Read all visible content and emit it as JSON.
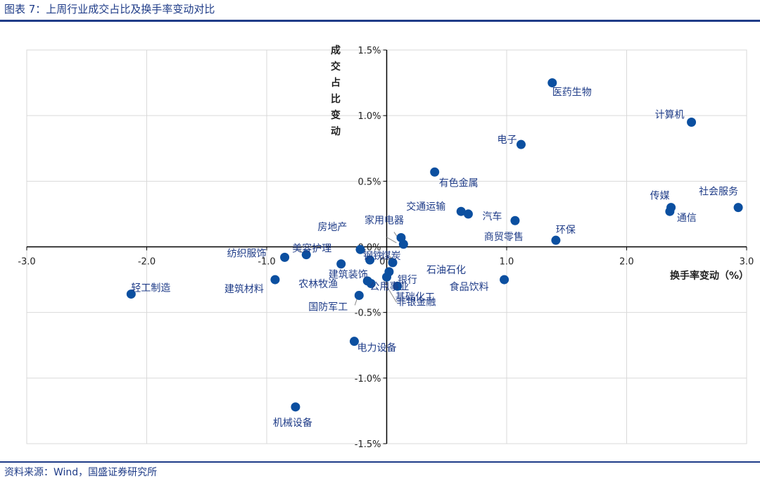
{
  "header": {
    "title": "图表 7：上周行业成交占比及换手率变动对比"
  },
  "footer": {
    "source": "资料来源：Wind，国盛证券研究所"
  },
  "chart_data": {
    "type": "scatter",
    "xlabel": "换手率变动（%）",
    "ylabel": "成交占比变动",
    "xlim": [
      -3.0,
      3.0
    ],
    "ylim": [
      -1.5,
      1.5
    ],
    "x_ticks": [
      "-3.0",
      "-2.0",
      "-1.0",
      "0.0",
      "1.0",
      "2.0",
      "3.0"
    ],
    "y_ticks": [
      "-1.5%",
      "-1.0%",
      "-0.5%",
      "0.0%",
      "0.5%",
      "1.0%",
      "1.5%"
    ],
    "grid": true,
    "colors": {
      "point": "#0b4fa0",
      "label": "#1f3c88",
      "rule": "#1f3c88"
    },
    "points": [
      {
        "name": "医药生物",
        "x": 1.38,
        "y": 1.25
      },
      {
        "name": "计算机",
        "x": 2.54,
        "y": 0.95
      },
      {
        "name": "电子",
        "x": 1.12,
        "y": 0.78
      },
      {
        "name": "有色金属",
        "x": 0.4,
        "y": 0.57
      },
      {
        "name": "传媒",
        "x": 2.37,
        "y": 0.3
      },
      {
        "name": "社会服务",
        "x": 2.93,
        "y": 0.3
      },
      {
        "name": "通信",
        "x": 2.36,
        "y": 0.27
      },
      {
        "name": "交通运输",
        "x": 0.62,
        "y": 0.27
      },
      {
        "name": "汽车",
        "x": 0.68,
        "y": 0.25
      },
      {
        "name": "商贸零售",
        "x": 1.07,
        "y": 0.2
      },
      {
        "name": "环保",
        "x": 1.41,
        "y": 0.05
      },
      {
        "name": "家用电器",
        "x": 0.12,
        "y": 0.07
      },
      {
        "name": "房地产",
        "x": 0.14,
        "y": 0.02
      },
      {
        "name": "钢铁",
        "x": -0.22,
        "y": -0.02
      },
      {
        "name": "美容护理",
        "x": -0.67,
        "y": -0.06
      },
      {
        "name": "纺织服饰",
        "x": -0.85,
        "y": -0.08
      },
      {
        "name": "煤炭",
        "x": -0.14,
        "y": -0.1
      },
      {
        "name": "石油石化",
        "x": 0.05,
        "y": -0.12
      },
      {
        "name": "建筑装饰",
        "x": -0.38,
        "y": -0.13
      },
      {
        "name": "银行",
        "x": 0.02,
        "y": -0.19
      },
      {
        "name": "建筑材料",
        "x": -0.93,
        "y": -0.25
      },
      {
        "name": "轻工制造",
        "x": -2.13,
        "y": -0.36
      },
      {
        "name": "食品饮料",
        "x": 0.98,
        "y": -0.25
      },
      {
        "name": "农林牧渔",
        "x": -0.16,
        "y": -0.26
      },
      {
        "name": "公用事业",
        "x": -0.13,
        "y": -0.28
      },
      {
        "name": "基础化工",
        "x": 0.09,
        "y": -0.3
      },
      {
        "name": "国防军工",
        "x": -0.23,
        "y": -0.37
      },
      {
        "name": "非银金融",
        "x": 0.0,
        "y": -0.23
      },
      {
        "name": "电力设备",
        "x": -0.27,
        "y": -0.72
      },
      {
        "name": "机械设备",
        "x": -0.76,
        "y": -1.22
      }
    ]
  }
}
